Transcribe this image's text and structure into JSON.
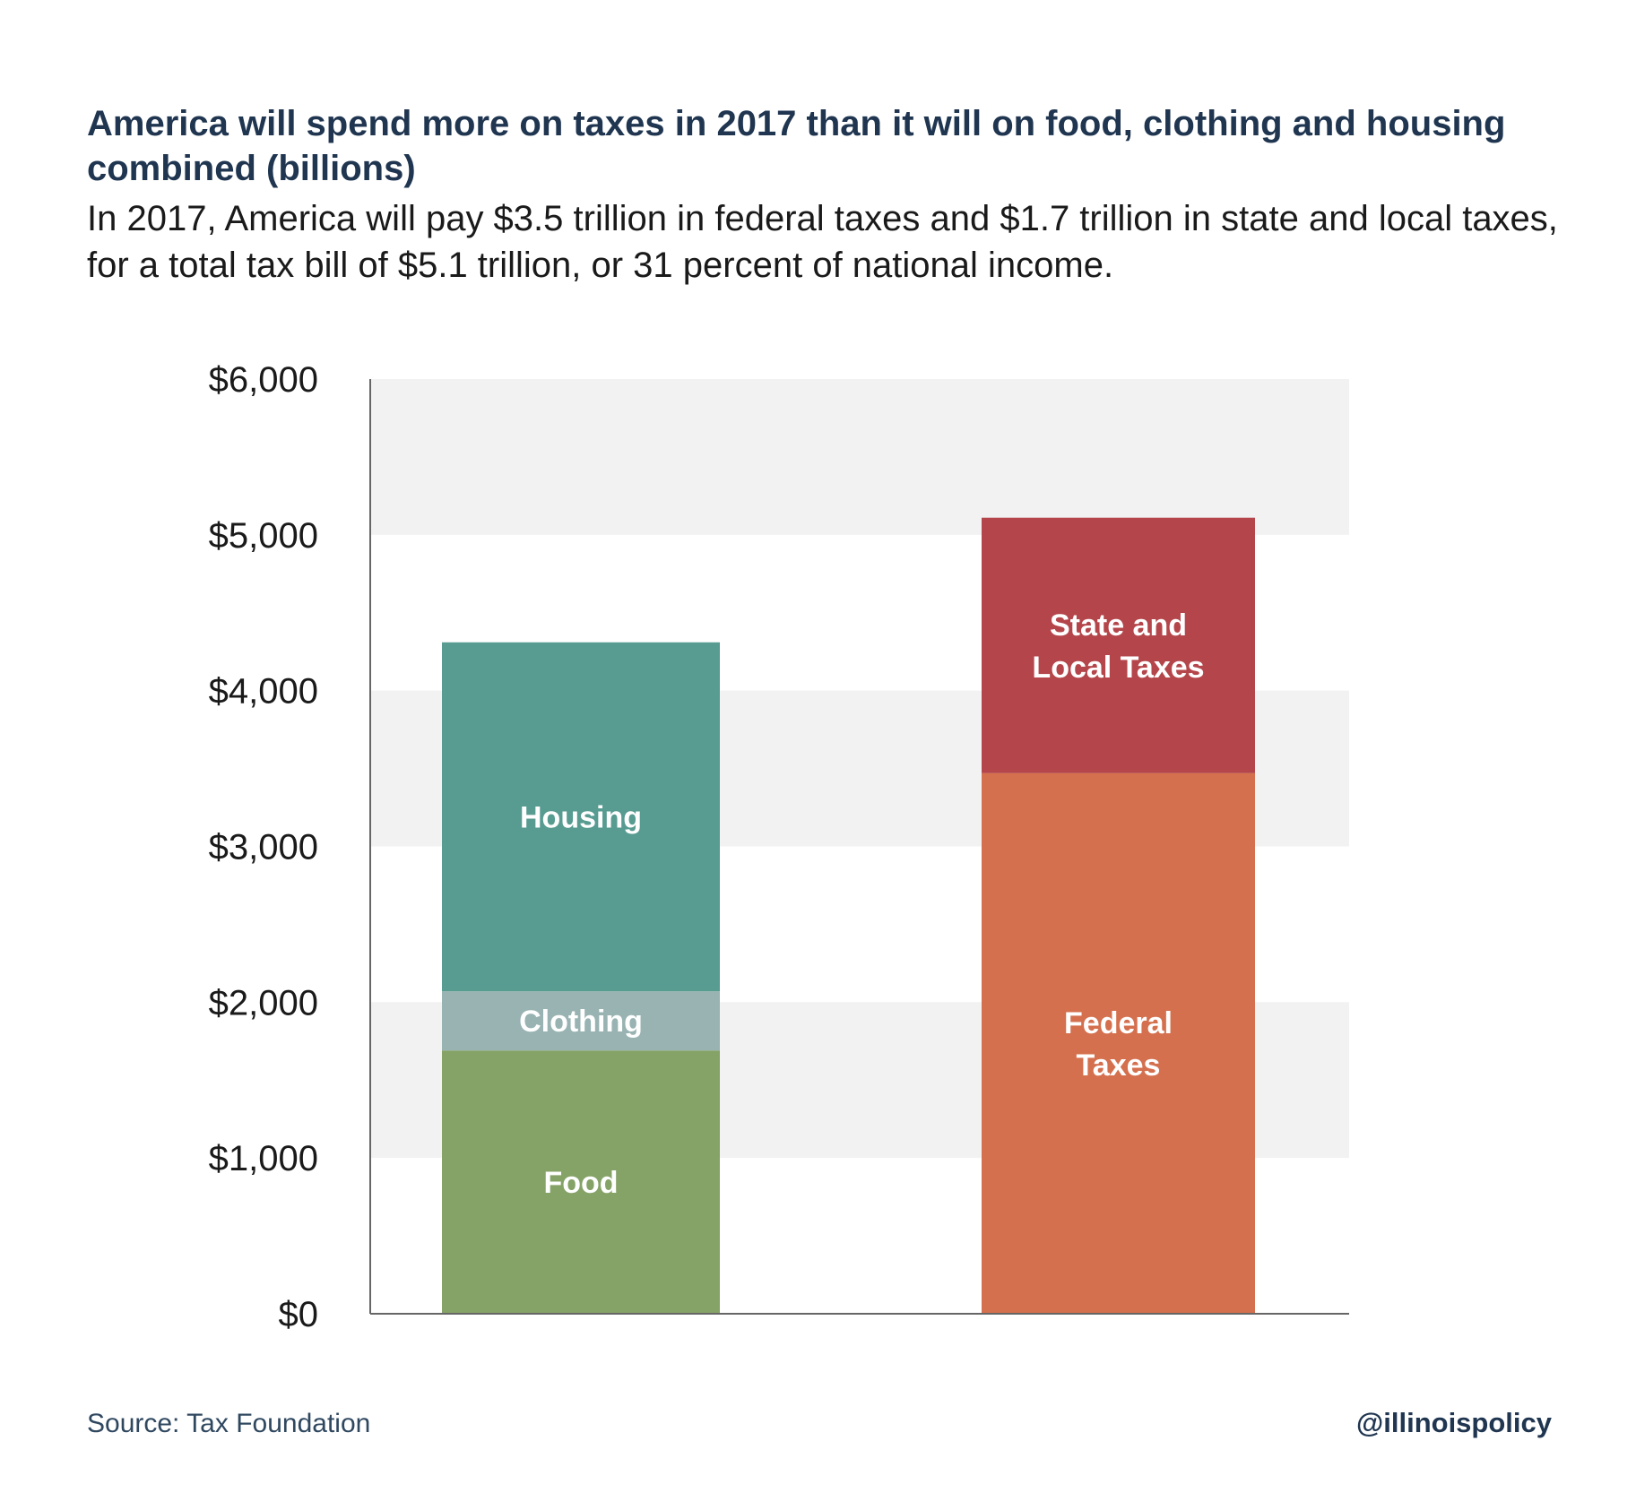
{
  "header": {
    "title": "America will spend more on taxes in 2017 than it will on food, clothing and housing combined (billions)",
    "subtitle": "In 2017, America will pay $3.5 trillion in federal taxes and $1.7 trillion in state and local taxes, for a total tax bill of $5.1 trillion, or 31 percent of national income."
  },
  "chart_data": {
    "type": "bar",
    "stacked": true,
    "ylim": [
      0,
      6000
    ],
    "yticks": [
      0,
      1000,
      2000,
      3000,
      4000,
      5000,
      6000
    ],
    "ytick_labels": [
      "$0",
      "$1,000",
      "$2,000",
      "$3,000",
      "$4,000",
      "$5,000",
      "$6,000"
    ],
    "grid": "alternating horizontal bands",
    "bars": [
      {
        "segments": [
          {
            "label": "Food",
            "lines": [
              "Food"
            ],
            "value": 1690,
            "color": "#85a267"
          },
          {
            "label": "Clothing",
            "lines": [
              "Clothing"
            ],
            "value": 380,
            "color": "#98b3b2"
          },
          {
            "label": "Housing",
            "lines": [
              "Housing"
            ],
            "value": 2240,
            "color": "#579b91"
          }
        ]
      },
      {
        "segments": [
          {
            "label": "Federal Taxes",
            "lines": [
              "Federal",
              "Taxes"
            ],
            "value": 3470,
            "color": "#d4704e"
          },
          {
            "label": "State and Local Taxes",
            "lines": [
              "State and",
              "Local Taxes"
            ],
            "value": 1640,
            "color": "#b4464b"
          }
        ]
      }
    ],
    "colors": {
      "band": "#f2f2f2",
      "axis": "#666666",
      "tick_text": "#1a1a1a",
      "segment_text": "#ffffff"
    }
  },
  "footer": {
    "source": "Source: Tax Foundation",
    "handle": "@illinoispolicy"
  }
}
